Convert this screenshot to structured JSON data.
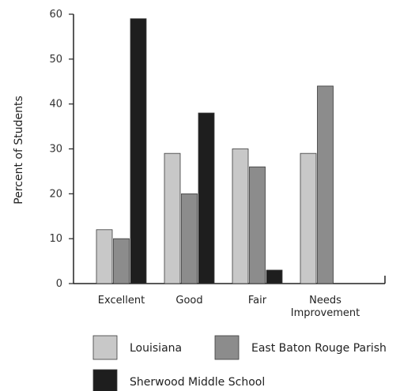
{
  "chart_data": {
    "type": "bar",
    "ylabel": "Percent of Students",
    "xlabel": "",
    "ylim": [
      0,
      60
    ],
    "yticks": [
      0,
      10,
      20,
      30,
      40,
      50,
      60
    ],
    "categories": [
      [
        "Excellent"
      ],
      [
        "Good"
      ],
      [
        "Fair"
      ],
      [
        "Needs",
        "Improvement"
      ]
    ],
    "series": [
      {
        "name": "Louisiana",
        "color": "#c8c8c8",
        "values": [
          12,
          29,
          30,
          29
        ]
      },
      {
        "name": "East Baton Rouge Parish",
        "color": "#8c8c8c",
        "values": [
          10,
          20,
          26,
          44
        ]
      },
      {
        "name": "Sherwood Middle School",
        "color": "#1e1e1e",
        "values": [
          59,
          38,
          3,
          0
        ]
      }
    ],
    "legend_position": "bottom",
    "grid": false
  }
}
